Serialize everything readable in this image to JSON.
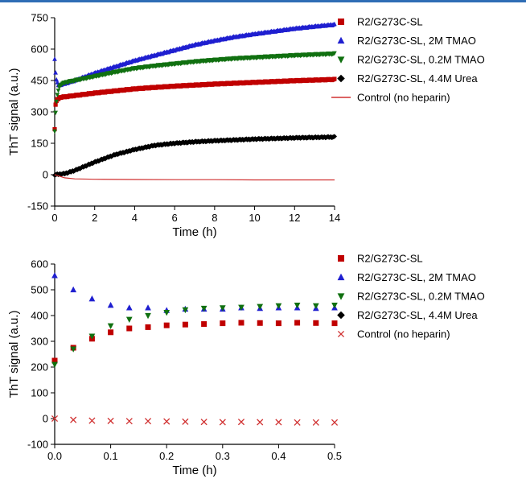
{
  "colors": {
    "accent_bar": "#2f6db5",
    "R2/G273C-SL": "#c00000",
    "R2/G273C-SL, 2M TMAO": "#1f1fd0",
    "R2/G273C-SL, 0.2M TMAO": "#107010",
    "R2/G273C-SL, 4.4M Urea": "#000000",
    "Control (no heparin)": "#d03030"
  },
  "chart_data": [
    {
      "type": "line",
      "xlabel": "Time (h)",
      "ylabel": "ThT signal (a.u.)",
      "xlim": [
        0,
        14
      ],
      "ylim": [
        -150,
        750
      ],
      "xticks": [
        "0",
        "2",
        "4",
        "6",
        "8",
        "10",
        "12",
        "14"
      ],
      "yticks": [
        "-150",
        "0",
        "150",
        "300",
        "450",
        "600",
        "750"
      ],
      "grid": false,
      "legend_position": "right",
      "legend": [
        {
          "label": "R2/G273C-SL",
          "marker": "square-icon",
          "color": "#c00000"
        },
        {
          "label": "R2/G273C-SL, 2M TMAO",
          "marker": "triangle-up-icon",
          "color": "#1f1fd0"
        },
        {
          "label": "R2/G273C-SL, 0.2M TMAO",
          "marker": "triangle-down-icon",
          "color": "#107010"
        },
        {
          "label": "R2/G273C-SL, 4.4M Urea",
          "marker": "diamond-icon",
          "color": "#000000"
        },
        {
          "label": "Control (no heparin)",
          "marker": "line-icon",
          "color": "#d03030"
        }
      ],
      "series": [
        {
          "name": "R2/G273C-SL",
          "color": "#c00000",
          "x": [
            0,
            0.03,
            0.1,
            0.2,
            0.3,
            0.5,
            1,
            2,
            3,
            4,
            5,
            6,
            7,
            8,
            9,
            10,
            11,
            12,
            13,
            14
          ],
          "y": [
            220,
            330,
            355,
            365,
            370,
            372,
            378,
            390,
            400,
            410,
            417,
            423,
            428,
            433,
            437,
            441,
            445,
            449,
            452,
            455
          ]
        },
        {
          "name": "R2/G273C-SL, 2M TMAO",
          "color": "#1f1fd0",
          "x": [
            0,
            0.03,
            0.1,
            0.2,
            0.3,
            0.5,
            1,
            2,
            3,
            4,
            5,
            6,
            7,
            8,
            9,
            10,
            11,
            12,
            13,
            14
          ],
          "y": [
            555,
            500,
            445,
            425,
            430,
            435,
            450,
            485,
            515,
            545,
            570,
            595,
            620,
            640,
            658,
            672,
            685,
            698,
            708,
            717
          ]
        },
        {
          "name": "R2/G273C-SL, 0.2M TMAO",
          "color": "#107010",
          "x": [
            0,
            0.03,
            0.1,
            0.2,
            0.3,
            0.5,
            1,
            2,
            3,
            4,
            5,
            6,
            7,
            8,
            9,
            10,
            11,
            12,
            13,
            14
          ],
          "y": [
            210,
            280,
            360,
            415,
            430,
            440,
            450,
            470,
            490,
            508,
            520,
            530,
            540,
            548,
            555,
            560,
            565,
            570,
            574,
            578
          ]
        },
        {
          "name": "R2/G273C-SL, 4.4M Urea",
          "color": "#000000",
          "x": [
            0,
            0.5,
            1,
            1.5,
            2,
            3,
            4,
            5,
            6,
            7,
            8,
            9,
            10,
            11,
            12,
            13,
            14
          ],
          "y": [
            0,
            5,
            20,
            40,
            60,
            95,
            120,
            140,
            150,
            157,
            162,
            166,
            170,
            173,
            176,
            178,
            180
          ]
        },
        {
          "name": "Control (no heparin)",
          "color": "#d03030",
          "x": [
            0,
            0.5,
            1,
            2,
            4,
            6,
            8,
            10,
            12,
            14
          ],
          "y": [
            0,
            -15,
            -20,
            -22,
            -23,
            -24,
            -24,
            -25,
            -25,
            -25
          ]
        }
      ]
    },
    {
      "type": "scatter",
      "xlabel": "Time (h)",
      "ylabel": "ThT signal (a.u.)",
      "xlim": [
        0,
        0.5
      ],
      "ylim": [
        -100,
        600
      ],
      "xticks": [
        "0.0",
        "0.1",
        "0.2",
        "0.3",
        "0.4",
        "0.5"
      ],
      "yticks": [
        "-100",
        "0",
        "100",
        "200",
        "300",
        "400",
        "500",
        "600"
      ],
      "grid": false,
      "legend_position": "right",
      "legend": [
        {
          "label": "R2/G273C-SL",
          "marker": "square-icon",
          "color": "#c00000"
        },
        {
          "label": "R2/G273C-SL, 2M TMAO",
          "marker": "triangle-up-icon",
          "color": "#1f1fd0"
        },
        {
          "label": "R2/G273C-SL, 0.2M TMAO",
          "marker": "triangle-down-icon",
          "color": "#107010"
        },
        {
          "label": "R2/G273C-SL, 4.4M Urea",
          "marker": "diamond-icon",
          "color": "#000000"
        },
        {
          "label": "Control (no heparin)",
          "marker": "x-icon",
          "color": "#d03030"
        }
      ],
      "x": [
        0,
        0.0333,
        0.0667,
        0.1,
        0.1333,
        0.1667,
        0.2,
        0.2333,
        0.2667,
        0.3,
        0.3333,
        0.3667,
        0.4,
        0.4333,
        0.4667,
        0.5
      ],
      "series": [
        {
          "name": "R2/G273C-SL",
          "marker": "square",
          "color": "#c00000",
          "y": [
            225,
            275,
            310,
            335,
            350,
            355,
            362,
            365,
            367,
            370,
            372,
            371,
            370,
            372,
            371,
            370
          ]
        },
        {
          "name": "R2/G273C-SL, 2M TMAO",
          "marker": "triangle-up",
          "color": "#1f1fd0",
          "y": [
            555,
            500,
            465,
            440,
            430,
            430,
            420,
            425,
            425,
            425,
            430,
            428,
            430,
            430,
            428,
            430
          ]
        },
        {
          "name": "R2/G273C-SL, 0.2M TMAO",
          "marker": "triangle-down",
          "color": "#107010",
          "y": [
            210,
            270,
            320,
            360,
            385,
            400,
            412,
            422,
            428,
            430,
            432,
            435,
            438,
            440,
            438,
            440
          ]
        },
        {
          "name": "Control (no heparin)",
          "marker": "x",
          "color": "#d03030",
          "y": [
            0,
            -5,
            -8,
            -9,
            -10,
            -10,
            -11,
            -12,
            -13,
            -14,
            -13,
            -14,
            -14,
            -15,
            -15,
            -15
          ]
        }
      ]
    }
  ]
}
